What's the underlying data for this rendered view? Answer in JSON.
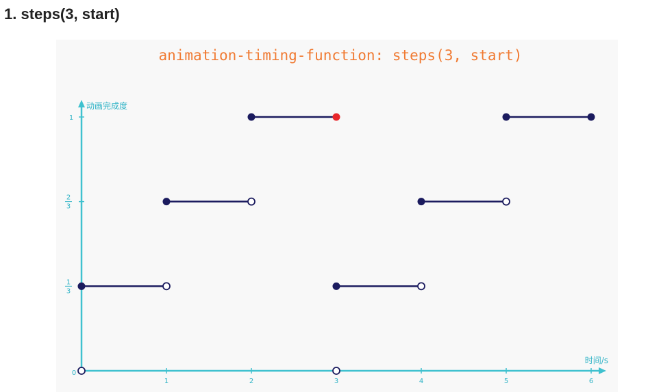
{
  "page": {
    "heading": "1. steps(3, start)"
  },
  "chart_data": {
    "type": "line",
    "title": "animation-timing-function: steps(3, start)",
    "xlabel": "时间/s",
    "ylabel": "动画完成度",
    "xlim": [
      0,
      6
    ],
    "ylim": [
      0,
      1
    ],
    "x_ticks": [
      "1",
      "2",
      "3",
      "4",
      "5",
      "6"
    ],
    "y_ticks": [
      {
        "value": 0,
        "label": "0"
      },
      {
        "value": 0.3333,
        "num": "1",
        "den": "3"
      },
      {
        "value": 0.6667,
        "num": "2",
        "den": "3"
      },
      {
        "value": 1,
        "label": "1"
      }
    ],
    "segments": [
      {
        "x0": 0,
        "x1": 1,
        "y": 0.3333,
        "start": "closed",
        "end": "open"
      },
      {
        "x0": 1,
        "x1": 2,
        "y": 0.6667,
        "start": "closed",
        "end": "open"
      },
      {
        "x0": 2,
        "x1": 3,
        "y": 1,
        "start": "closed",
        "end": "highlight"
      },
      {
        "x0": 3,
        "x1": 4,
        "y": 0.3333,
        "start": "closed",
        "end": "open"
      },
      {
        "x0": 4,
        "x1": 5,
        "y": 0.6667,
        "start": "closed",
        "end": "open"
      },
      {
        "x0": 5,
        "x1": 6,
        "y": 1,
        "start": "closed",
        "end": "closed"
      }
    ],
    "extra_points": [
      {
        "x": 0,
        "y": 0,
        "style": "open"
      },
      {
        "x": 3,
        "y": 0,
        "style": "open"
      }
    ],
    "colors": {
      "axis": "#3fc1cf",
      "axis_text": "#2fb3c6",
      "line": "#1b1b5e",
      "highlight": "#e8262a",
      "title": "#f07a32"
    }
  }
}
